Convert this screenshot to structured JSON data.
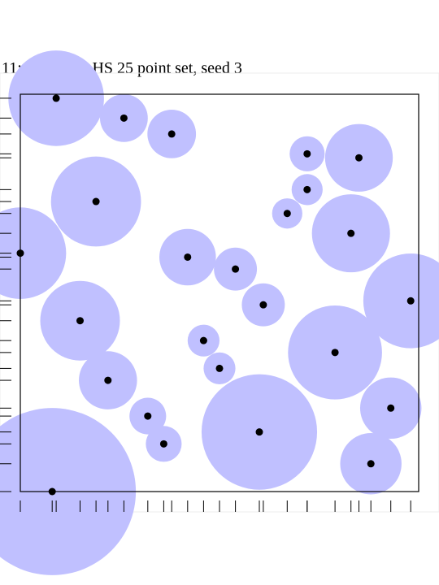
{
  "chart_data": {
    "type": "scatter",
    "title": "11: Romero LHS 25 point set, seed 3",
    "xlabel": "",
    "ylabel": "",
    "xlim": [
      0,
      1
    ],
    "ylim": [
      0,
      1
    ],
    "grid": false,
    "point_color": "#000000",
    "disc_color": "#c0c0ff",
    "points": [
      {
        "x": 0.08,
        "y": 0.0,
        "r": 0.21
      },
      {
        "x": 0.36,
        "y": 0.12,
        "r": 0.045
      },
      {
        "x": 0.88,
        "y": 0.07,
        "r": 0.077
      },
      {
        "x": 0.32,
        "y": 0.19,
        "r": 0.046
      },
      {
        "x": 0.6,
        "y": 0.15,
        "r": 0.145
      },
      {
        "x": 0.93,
        "y": 0.21,
        "r": 0.077
      },
      {
        "x": 0.22,
        "y": 0.28,
        "r": 0.073
      },
      {
        "x": 0.5,
        "y": 0.31,
        "r": 0.04
      },
      {
        "x": 0.46,
        "y": 0.38,
        "r": 0.04
      },
      {
        "x": 0.79,
        "y": 0.35,
        "r": 0.118
      },
      {
        "x": 0.15,
        "y": 0.43,
        "r": 0.1
      },
      {
        "x": 0.61,
        "y": 0.47,
        "r": 0.054
      },
      {
        "x": 0.98,
        "y": 0.48,
        "r": 0.119
      },
      {
        "x": 0.54,
        "y": 0.56,
        "r": 0.054
      },
      {
        "x": 0.42,
        "y": 0.59,
        "r": 0.071
      },
      {
        "x": 0.0,
        "y": 0.6,
        "r": 0.115
      },
      {
        "x": 0.83,
        "y": 0.65,
        "r": 0.098
      },
      {
        "x": 0.67,
        "y": 0.7,
        "r": 0.038
      },
      {
        "x": 0.19,
        "y": 0.73,
        "r": 0.113
      },
      {
        "x": 0.72,
        "y": 0.76,
        "r": 0.039
      },
      {
        "x": 0.72,
        "y": 0.85,
        "r": 0.044
      },
      {
        "x": 0.85,
        "y": 0.84,
        "r": 0.085
      },
      {
        "x": 0.38,
        "y": 0.9,
        "r": 0.061
      },
      {
        "x": 0.26,
        "y": 0.94,
        "r": 0.06
      },
      {
        "x": 0.09,
        "y": 0.99,
        "r": 0.12
      }
    ]
  }
}
